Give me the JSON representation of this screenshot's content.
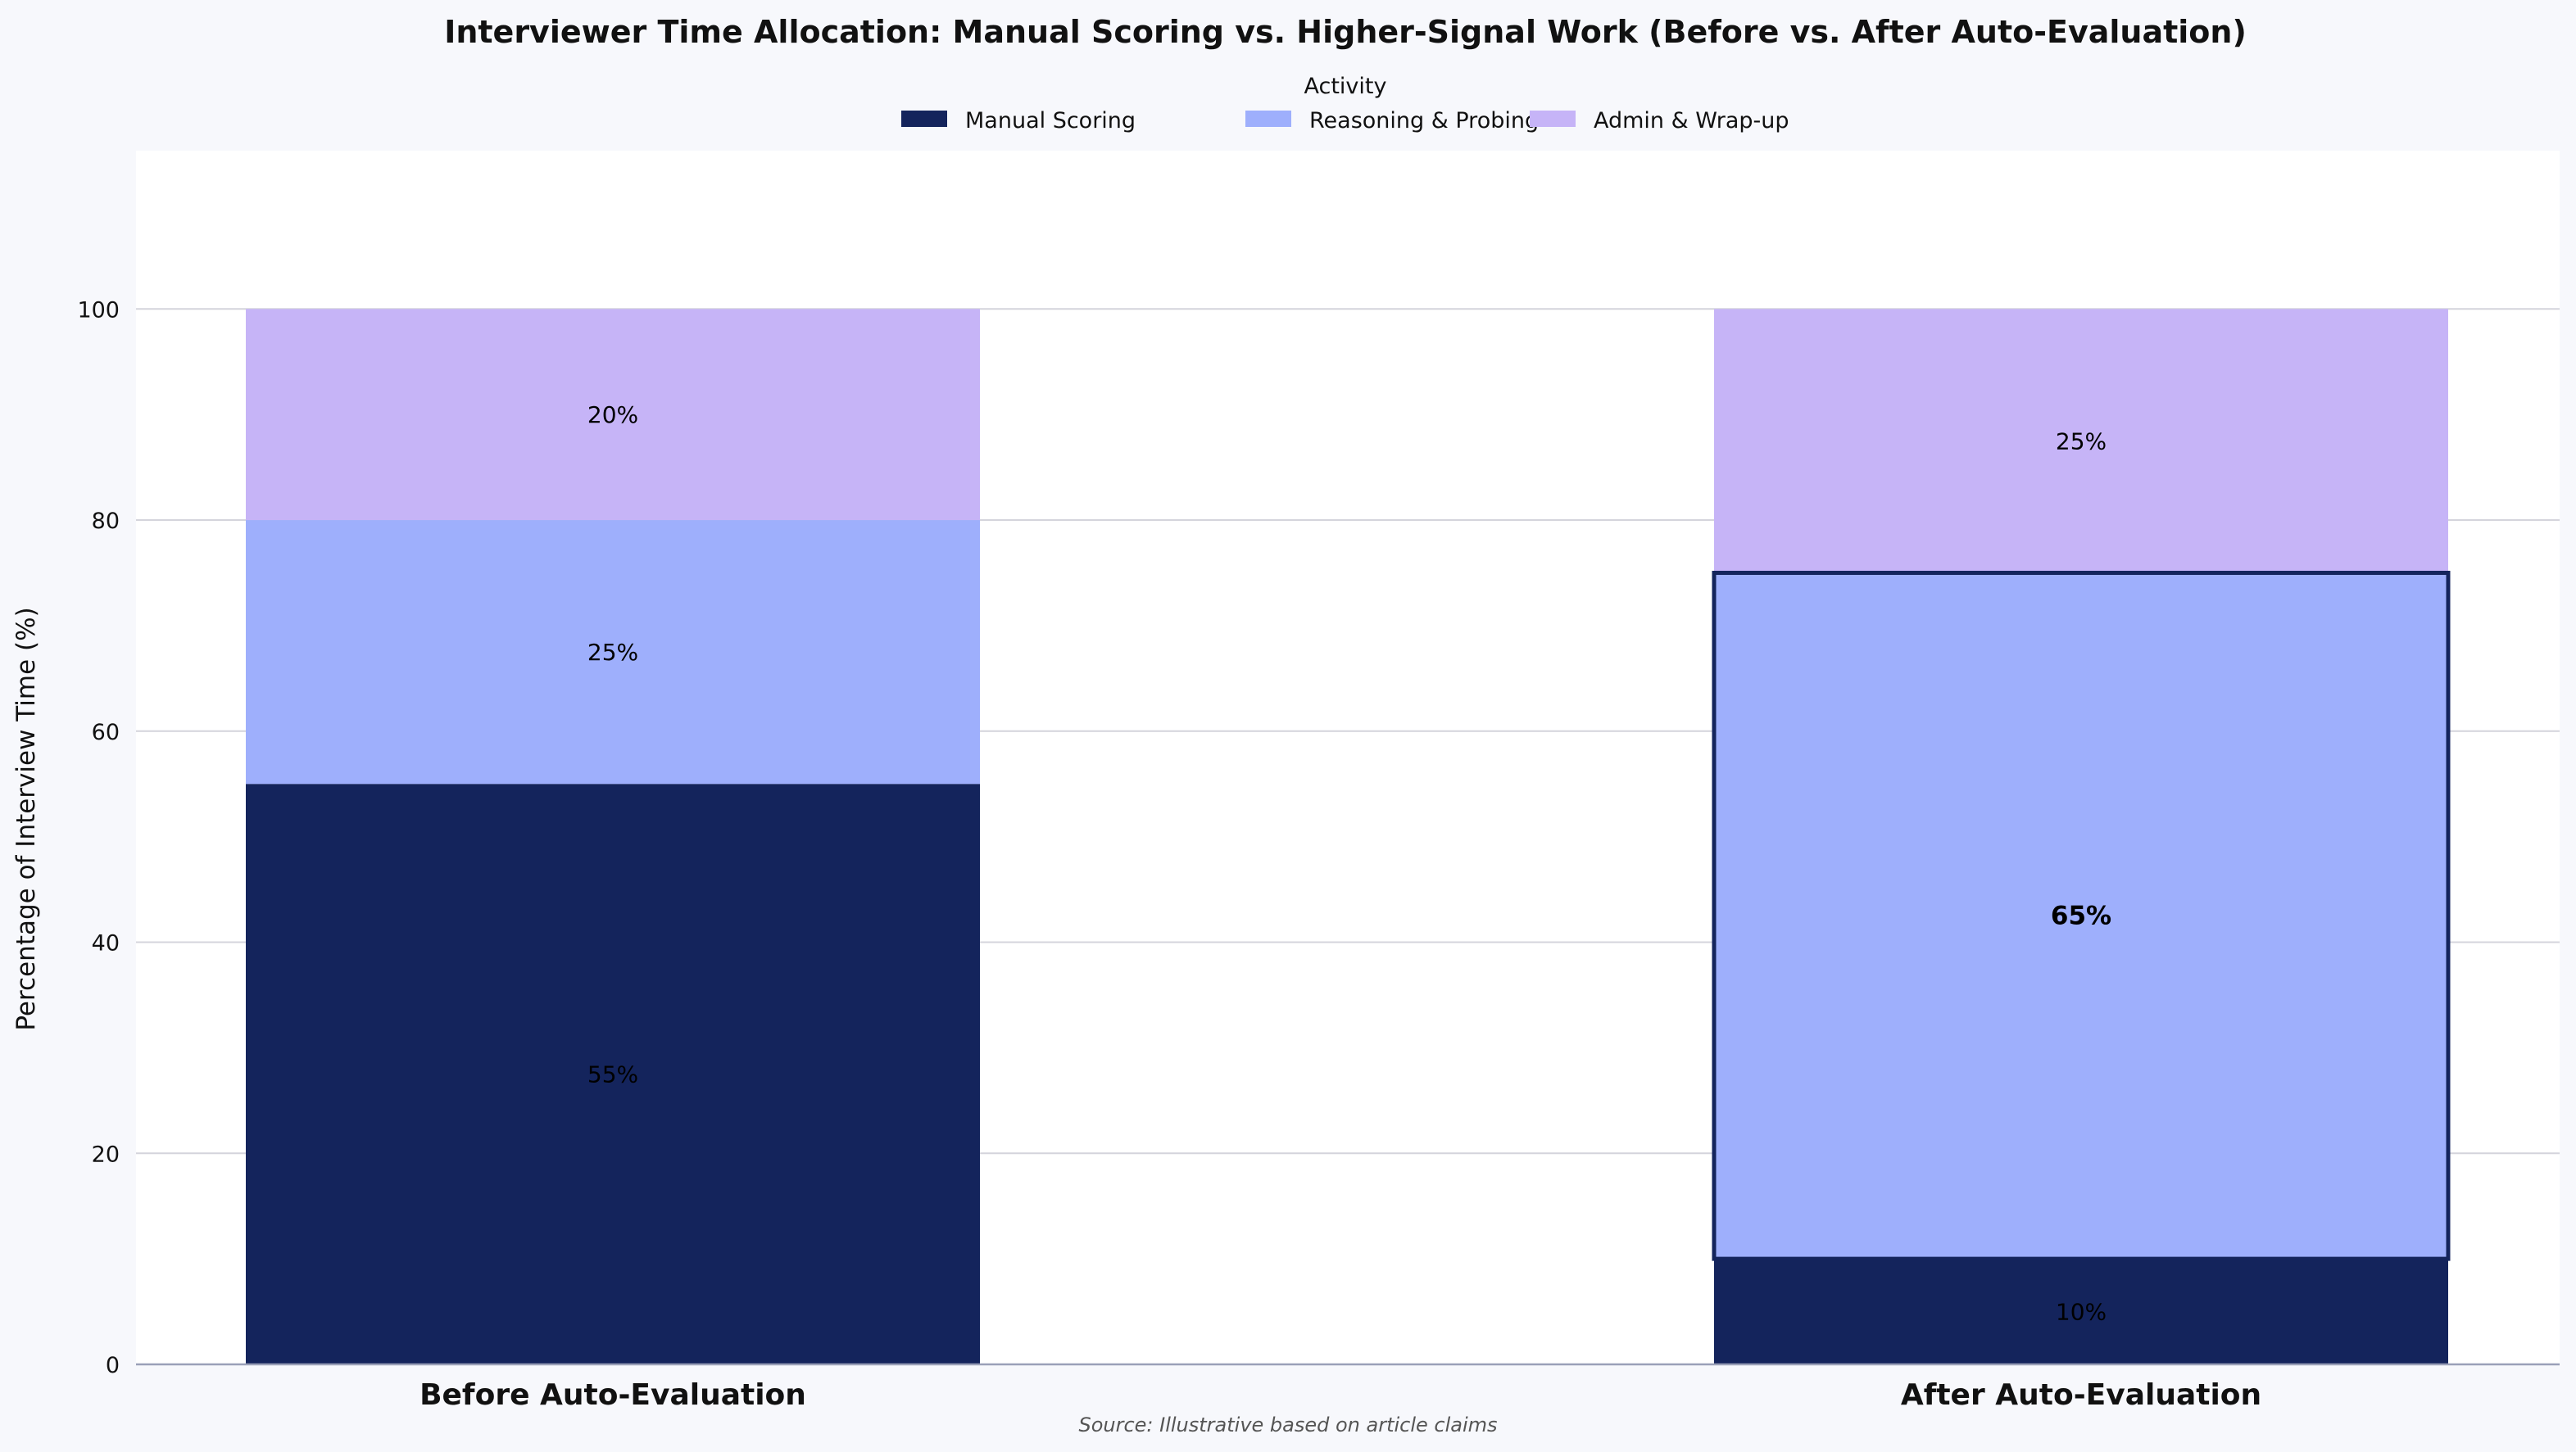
{
  "chart_data": {
    "type": "bar",
    "stacked": true,
    "title": "Interviewer Time Allocation: Manual Scoring vs. Higher-Signal Work (Before vs. After Auto-Evaluation)",
    "xlabel": "",
    "ylabel": "Percentage of Interview Time (%)",
    "ylim": [
      0,
      115
    ],
    "yticks": [
      0,
      20,
      40,
      60,
      80,
      100
    ],
    "grid": true,
    "categories": [
      "Before Auto-Evaluation",
      "After Auto-Evaluation"
    ],
    "legend": {
      "title": "Activity",
      "placement": "top-center"
    },
    "series": [
      {
        "name": "Manual Scoring",
        "color": "#14245c",
        "values": [
          55,
          10
        ],
        "labels": [
          "55%",
          "10%"
        ]
      },
      {
        "name": "Reasoning & Probing",
        "color": "#9eaffc",
        "values": [
          25,
          65
        ],
        "labels": [
          "25%",
          "65%"
        ]
      },
      {
        "name": "Admin & Wrap-up",
        "color": "#c6b4f7",
        "values": [
          20,
          25
        ],
        "labels": [
          "20%",
          "25%"
        ]
      }
    ],
    "highlight": {
      "series": "Reasoning & Probing",
      "category": "After Auto-Evaluation"
    },
    "source": "Source: Illustrative based on article claims"
  }
}
